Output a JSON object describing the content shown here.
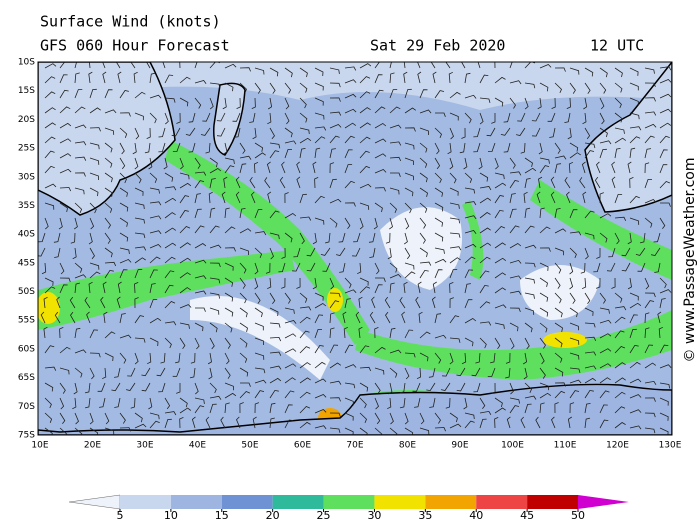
{
  "header": {
    "title": "Surface Wind (knots)",
    "subtitle": "GFS 060 Hour Forecast",
    "date": "Sat 29 Feb 2020",
    "time": "12 UTC"
  },
  "map": {
    "lat_labels": [
      "10S",
      "15S",
      "20S",
      "25S",
      "30S",
      "35S",
      "40S",
      "45S",
      "50S",
      "55S",
      "60S",
      "65S",
      "70S",
      "75S"
    ],
    "lon_labels": [
      "10E",
      "20E",
      "30E",
      "40E",
      "50E",
      "60E",
      "70E",
      "80E",
      "90E",
      "100E",
      "110E",
      "120E",
      "130E"
    ]
  },
  "colorbar": {
    "ticks": [
      5,
      10,
      15,
      20,
      25,
      30,
      35,
      40,
      45,
      50
    ],
    "colors": [
      "#eef2fa",
      "#c9d7ee",
      "#9db5e0",
      "#6e92d3",
      "#2fba9c",
      "#5ee05e",
      "#f2e200",
      "#f2a400",
      "#ee4444",
      "#c00000",
      "#d000d0"
    ]
  },
  "credit": "© www.PassageWeather.com"
}
